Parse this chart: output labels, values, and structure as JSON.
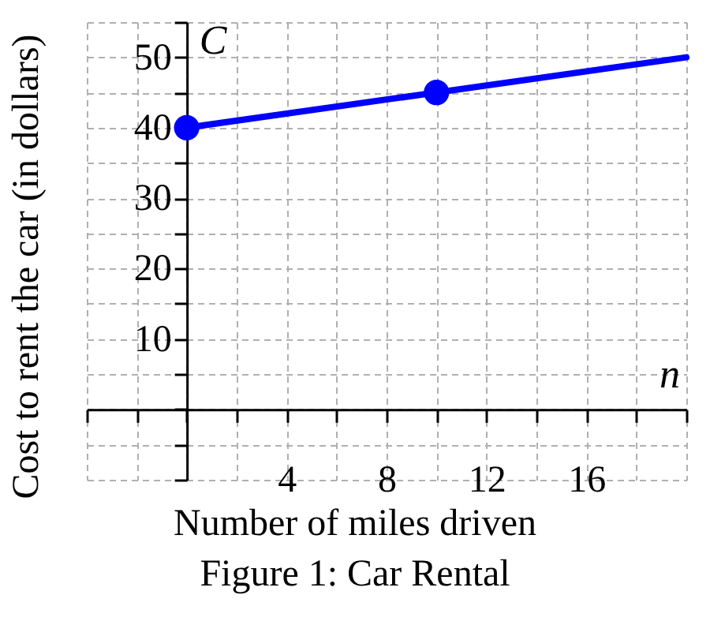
{
  "chart_data": {
    "type": "line",
    "title": "Figure 1: Car Rental",
    "xlabel": "Number of miles driven",
    "ylabel": "Cost to rent the car (in dollars)",
    "series": [
      {
        "color": "#0000ff",
        "x": [
          0,
          10,
          20
        ],
        "values": [
          40,
          45,
          50
        ],
        "marker": "none"
      },
      {
        "type": "scatter",
        "color": "#0000ff",
        "x": [
          0,
          10
        ],
        "values": [
          40,
          45
        ],
        "marker": "circle"
      }
    ],
    "annotations": [
      "C",
      "n"
    ],
    "xlim": [
      -4,
      20
    ],
    "ylim": [
      -10,
      55
    ],
    "xticks": [
      {
        "value": -4,
        "label": null
      },
      {
        "value": -2,
        "label": null
      },
      {
        "value": 0,
        "label": null
      },
      {
        "value": 2,
        "label": null
      },
      4,
      {
        "value": 6,
        "label": null
      },
      8,
      {
        "value": 10,
        "label": null
      },
      12,
      {
        "value": 14,
        "label": null
      },
      16,
      {
        "value": 18,
        "label": null
      },
      {
        "value": 20,
        "label": null
      }
    ],
    "yticks": [
      {
        "value": -10,
        "label": null
      },
      {
        "value": -5,
        "label": null
      },
      {
        "value": 0,
        "label": null
      },
      {
        "value": 5,
        "label": null
      },
      10,
      {
        "value": 15,
        "label": null
      },
      20,
      {
        "value": 25,
        "label": null
      },
      30,
      {
        "value": 35,
        "label": null
      },
      40,
      {
        "value": 45,
        "label": null
      },
      50,
      {
        "value": 55,
        "label": null
      }
    ],
    "grid": true
  }
}
